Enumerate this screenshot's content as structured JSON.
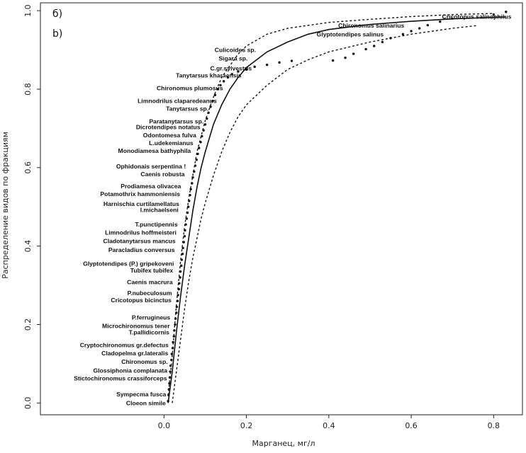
{
  "chart_data": {
    "type": "scatter",
    "panel_labels": [
      "б)",
      "b)"
    ],
    "xlabel": "Марганец, мг/л",
    "ylabel": "Распределение видов по фракциям",
    "xlim": [
      -0.3,
      0.87
    ],
    "ylim": [
      -0.03,
      1.02
    ],
    "x_ticks": [
      0.0,
      0.2,
      0.4,
      0.6,
      0.8
    ],
    "x_tick_labels": [
      "0.0",
      "0.2",
      "0.4",
      "0.6",
      "0.8"
    ],
    "y_ticks": [
      0.0,
      0.2,
      0.4,
      0.6,
      0.8,
      1.0
    ],
    "y_tick_labels": [
      "0.0",
      "0.2",
      "0.4",
      "0.6",
      "0.8",
      "1.0"
    ],
    "points": [
      [
        0.01,
        0.005
      ],
      [
        0.011,
        0.02
      ],
      [
        0.012,
        0.035
      ],
      [
        0.013,
        0.05
      ],
      [
        0.014,
        0.065
      ],
      [
        0.015,
        0.08
      ],
      [
        0.016,
        0.095
      ],
      [
        0.018,
        0.11
      ],
      [
        0.019,
        0.125
      ],
      [
        0.021,
        0.14
      ],
      [
        0.022,
        0.155
      ],
      [
        0.024,
        0.17
      ],
      [
        0.025,
        0.185
      ],
      [
        0.027,
        0.2
      ],
      [
        0.028,
        0.215
      ],
      [
        0.03,
        0.23
      ],
      [
        0.031,
        0.245
      ],
      [
        0.033,
        0.26
      ],
      [
        0.034,
        0.275
      ],
      [
        0.036,
        0.29
      ],
      [
        0.037,
        0.305
      ],
      [
        0.039,
        0.32
      ],
      [
        0.04,
        0.335
      ],
      [
        0.042,
        0.35
      ],
      [
        0.043,
        0.365
      ],
      [
        0.045,
        0.38
      ],
      [
        0.046,
        0.395
      ],
      [
        0.048,
        0.41
      ],
      [
        0.05,
        0.425
      ],
      [
        0.051,
        0.44
      ],
      [
        0.053,
        0.455
      ],
      [
        0.055,
        0.47
      ],
      [
        0.057,
        0.485
      ],
      [
        0.059,
        0.5
      ],
      [
        0.061,
        0.515
      ],
      [
        0.063,
        0.53
      ],
      [
        0.065,
        0.545
      ],
      [
        0.068,
        0.56
      ],
      [
        0.07,
        0.575
      ],
      [
        0.073,
        0.59
      ],
      [
        0.076,
        0.605
      ],
      [
        0.079,
        0.62
      ],
      [
        0.082,
        0.635
      ],
      [
        0.085,
        0.65
      ],
      [
        0.089,
        0.665
      ],
      [
        0.092,
        0.68
      ],
      [
        0.096,
        0.695
      ],
      [
        0.1,
        0.71
      ],
      [
        0.104,
        0.725
      ],
      [
        0.108,
        0.74
      ],
      [
        0.113,
        0.755
      ],
      [
        0.118,
        0.77
      ],
      [
        0.124,
        0.785
      ],
      [
        0.13,
        0.8
      ],
      [
        0.137,
        0.81
      ],
      [
        0.145,
        0.82
      ],
      [
        0.155,
        0.83
      ],
      [
        0.165,
        0.838
      ],
      [
        0.18,
        0.845
      ],
      [
        0.2,
        0.85
      ],
      [
        0.22,
        0.857
      ],
      [
        0.25,
        0.862
      ],
      [
        0.28,
        0.868
      ],
      [
        0.31,
        0.872
      ],
      [
        0.41,
        0.873
      ],
      [
        0.44,
        0.88
      ],
      [
        0.46,
        0.89
      ],
      [
        0.49,
        0.902
      ],
      [
        0.51,
        0.91
      ],
      [
        0.53,
        0.92
      ],
      [
        0.55,
        0.93
      ],
      [
        0.58,
        0.94
      ],
      [
        0.6,
        0.948
      ],
      [
        0.62,
        0.955
      ],
      [
        0.64,
        0.963
      ],
      [
        0.67,
        0.972
      ],
      [
        0.7,
        0.98
      ],
      [
        0.8,
        0.99
      ],
      [
        0.83,
        0.997
      ]
    ],
    "fit_curve": [
      [
        0.01,
        0.0
      ],
      [
        0.02,
        0.08
      ],
      [
        0.03,
        0.18
      ],
      [
        0.04,
        0.27
      ],
      [
        0.05,
        0.35
      ],
      [
        0.06,
        0.42
      ],
      [
        0.07,
        0.49
      ],
      [
        0.08,
        0.55
      ],
      [
        0.09,
        0.6
      ],
      [
        0.1,
        0.64
      ],
      [
        0.12,
        0.71
      ],
      [
        0.14,
        0.76
      ],
      [
        0.16,
        0.8
      ],
      [
        0.18,
        0.83
      ],
      [
        0.2,
        0.855
      ],
      [
        0.25,
        0.895
      ],
      [
        0.3,
        0.92
      ],
      [
        0.35,
        0.94
      ],
      [
        0.4,
        0.952
      ],
      [
        0.5,
        0.965
      ],
      [
        0.6,
        0.973
      ],
      [
        0.7,
        0.979
      ],
      [
        0.8,
        0.983
      ],
      [
        0.83,
        0.984
      ]
    ],
    "upper_band": [
      [
        0.01,
        0.02
      ],
      [
        0.02,
        0.12
      ],
      [
        0.03,
        0.25
      ],
      [
        0.04,
        0.36
      ],
      [
        0.05,
        0.45
      ],
      [
        0.06,
        0.52
      ],
      [
        0.07,
        0.58
      ],
      [
        0.08,
        0.64
      ],
      [
        0.09,
        0.68
      ],
      [
        0.1,
        0.72
      ],
      [
        0.12,
        0.78
      ],
      [
        0.14,
        0.83
      ],
      [
        0.16,
        0.86
      ],
      [
        0.18,
        0.89
      ],
      [
        0.2,
        0.91
      ],
      [
        0.25,
        0.94
      ],
      [
        0.3,
        0.955
      ],
      [
        0.4,
        0.97
      ],
      [
        0.5,
        0.978
      ],
      [
        0.6,
        0.985
      ],
      [
        0.7,
        0.99
      ],
      [
        0.8,
        0.993
      ]
    ],
    "lower_band": [
      [
        0.02,
        0.0
      ],
      [
        0.03,
        0.08
      ],
      [
        0.04,
        0.16
      ],
      [
        0.05,
        0.24
      ],
      [
        0.06,
        0.31
      ],
      [
        0.07,
        0.37
      ],
      [
        0.08,
        0.42
      ],
      [
        0.09,
        0.47
      ],
      [
        0.1,
        0.51
      ],
      [
        0.12,
        0.58
      ],
      [
        0.14,
        0.64
      ],
      [
        0.16,
        0.69
      ],
      [
        0.18,
        0.73
      ],
      [
        0.2,
        0.76
      ],
      [
        0.25,
        0.81
      ],
      [
        0.3,
        0.85
      ],
      [
        0.35,
        0.875
      ],
      [
        0.4,
        0.895
      ],
      [
        0.5,
        0.92
      ],
      [
        0.6,
        0.94
      ],
      [
        0.7,
        0.955
      ],
      [
        0.76,
        0.962
      ]
    ],
    "species_labels": [
      {
        "text": "Cricotopus salinophilus",
        "x": 0.85,
        "y": 0.985
      },
      {
        "text": "Chironomus salinarius",
        "x": 0.59,
        "y": 0.962
      },
      {
        "text": "Glyptotendipes salinus",
        "x": 0.54,
        "y": 0.94
      },
      {
        "text": "Culicoides sp.",
        "x": 0.23,
        "y": 0.9
      },
      {
        "text": "Sigara sp.",
        "x": 0.21,
        "y": 0.878
      },
      {
        "text": "C.gr.sylvestris",
        "x": 0.22,
        "y": 0.853
      },
      {
        "text": "Tanytarsus kharaensis",
        "x": 0.195,
        "y": 0.835
      },
      {
        "text": "Chironomus plumosus",
        "x": 0.15,
        "y": 0.803
      },
      {
        "text": "Limnodrilus claparedeanus",
        "x": 0.135,
        "y": 0.77
      },
      {
        "text": "Tanytarsus sp.",
        "x": 0.115,
        "y": 0.75
      },
      {
        "text": "Paratanytarsus sp.",
        "x": 0.103,
        "y": 0.718
      },
      {
        "text": "Dicrotendipes notatus",
        "x": 0.095,
        "y": 0.703
      },
      {
        "text": "Odontomesa fulva",
        "x": 0.085,
        "y": 0.683
      },
      {
        "text": "L.udekemianus",
        "x": 0.078,
        "y": 0.663
      },
      {
        "text": "Monodiamesa bathyphila",
        "x": 0.072,
        "y": 0.643
      },
      {
        "text": "Ophidonais serpentina !",
        "x": 0.06,
        "y": 0.603
      },
      {
        "text": "Caenis robusta",
        "x": 0.057,
        "y": 0.583
      },
      {
        "text": "Prodiamesa olivacea",
        "x": 0.048,
        "y": 0.553
      },
      {
        "text": "Potamothrix hammoniensis",
        "x": 0.046,
        "y": 0.533
      },
      {
        "text": "Harnischia curtilamellatus",
        "x": 0.044,
        "y": 0.508
      },
      {
        "text": "I.michaelseni",
        "x": 0.042,
        "y": 0.492
      },
      {
        "text": "T.punctipennis",
        "x": 0.04,
        "y": 0.455
      },
      {
        "text": "Limnodrilus hoffmeisteri",
        "x": 0.037,
        "y": 0.435
      },
      {
        "text": "Cladotanytarsus mancus",
        "x": 0.035,
        "y": 0.413
      },
      {
        "text": "Paracladius conversus",
        "x": 0.033,
        "y": 0.39
      },
      {
        "text": "Glyptotendipes (P.) gripekoveni",
        "x": 0.031,
        "y": 0.355
      },
      {
        "text": "Tubifex tubifex",
        "x": 0.029,
        "y": 0.338
      },
      {
        "text": "Caenis macrura",
        "x": 0.028,
        "y": 0.308
      },
      {
        "text": "P.nubeculosum",
        "x": 0.026,
        "y": 0.28
      },
      {
        "text": "Cricotopus bicinctus",
        "x": 0.025,
        "y": 0.262
      },
      {
        "text": "P.ferrugineus",
        "x": 0.022,
        "y": 0.218
      },
      {
        "text": "Microchironomus tener",
        "x": 0.021,
        "y": 0.196
      },
      {
        "text": "T.pallidicornis",
        "x": 0.02,
        "y": 0.18
      },
      {
        "text": "Cryptochironomus gr.defectus",
        "x": 0.018,
        "y": 0.148
      },
      {
        "text": "Cladopelma gr.lateralis",
        "x": 0.017,
        "y": 0.127
      },
      {
        "text": "Chironomus sp.",
        "x": 0.016,
        "y": 0.105
      },
      {
        "text": "Glossiphonia complanata",
        "x": 0.015,
        "y": 0.083
      },
      {
        "text": "Stictochironomus crassiforceps",
        "x": 0.014,
        "y": 0.063
      },
      {
        "text": "Sympecma fusca",
        "x": 0.012,
        "y": 0.022
      },
      {
        "text": "Cloeon simile",
        "x": 0.011,
        "y": 0.0
      }
    ]
  }
}
